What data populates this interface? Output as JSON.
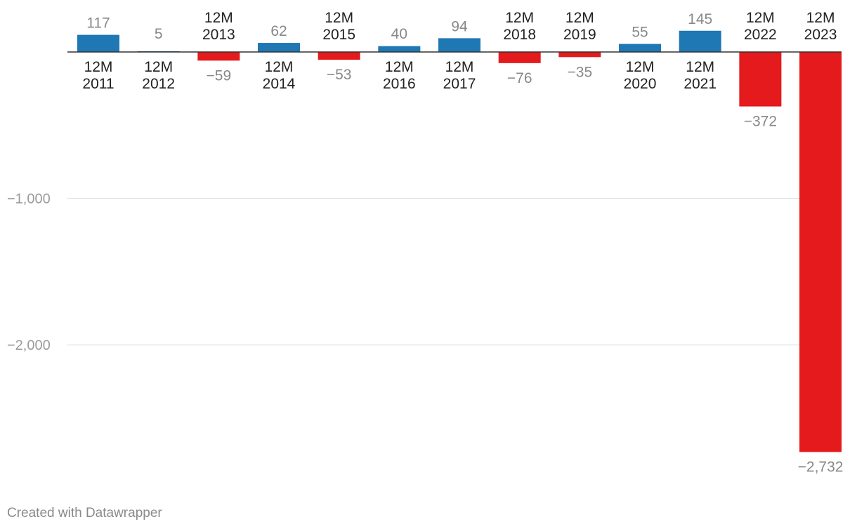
{
  "chart_data": {
    "type": "bar",
    "categories": [
      "12M 2011",
      "12M 2012",
      "12M 2013",
      "12M 2014",
      "12M 2015",
      "12M 2016",
      "12M 2017",
      "12M 2018",
      "12M 2019",
      "12M 2020",
      "12M 2021",
      "12M 2022",
      "12M 2023"
    ],
    "values": [
      117,
      5,
      -59,
      62,
      -53,
      40,
      94,
      -76,
      -35,
      55,
      145,
      -372,
      -2732
    ],
    "value_labels": [
      "117",
      "5",
      "−59",
      "62",
      "−53",
      "40",
      "94",
      "−76",
      "−35",
      "55",
      "145",
      "−372",
      "−2,732"
    ],
    "yticks": [
      {
        "value": -1000,
        "label": "−1,000"
      },
      {
        "value": -2000,
        "label": "−2,000"
      }
    ],
    "ylim": [
      -2732,
      145
    ],
    "grid": true,
    "colors": {
      "positive": "#1f77b4",
      "negative": "#e41a1c"
    },
    "title": "",
    "xlabel": "",
    "ylabel": ""
  },
  "footer": {
    "credit": "Created with Datawrapper"
  }
}
